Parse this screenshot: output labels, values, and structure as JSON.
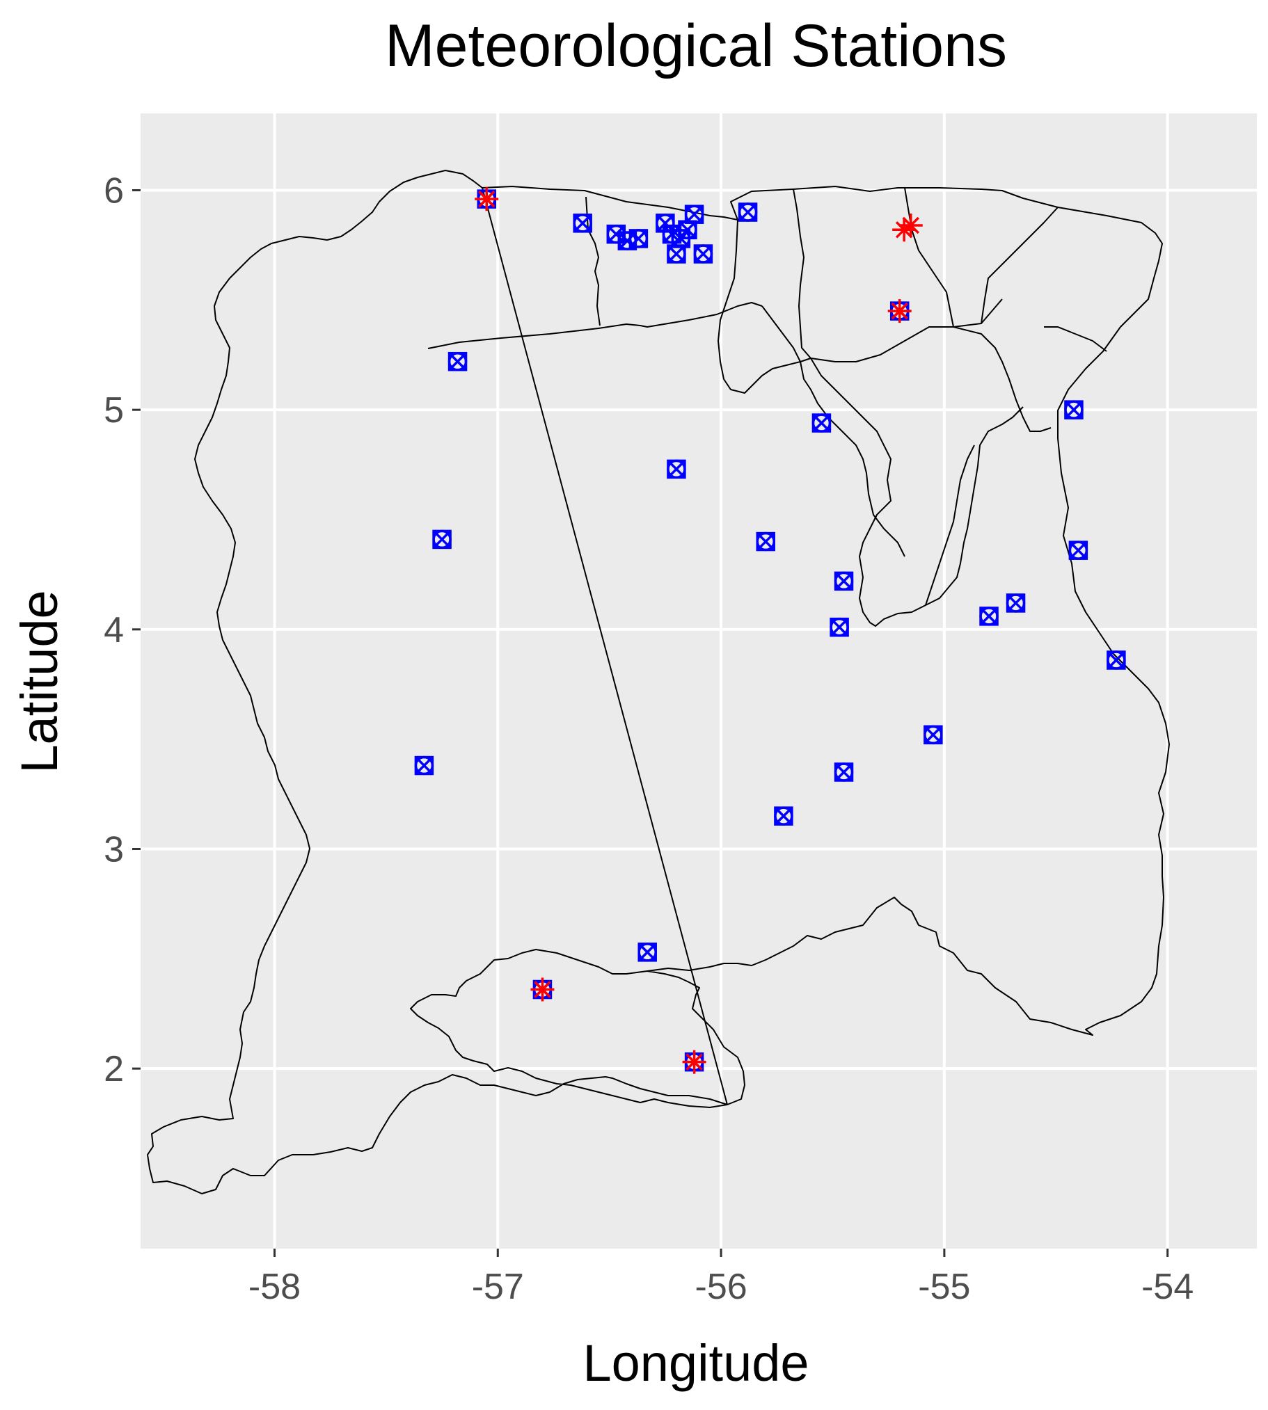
{
  "chart_data": {
    "type": "scatter",
    "title": "Meteorological Stations",
    "xlabel": "Longitude",
    "ylabel": "Latitude",
    "xlim": [
      -58.6,
      -53.6
    ],
    "ylim": [
      1.18,
      6.35
    ],
    "xticks": [
      -58,
      -57,
      -56,
      -55,
      -54
    ],
    "yticks": [
      2,
      3,
      4,
      5,
      6
    ],
    "grid": true,
    "colors": {
      "panel": "#ebebeb",
      "grid": "#ffffff",
      "stations_a": "#0000ff",
      "stations_b": "#ff0000",
      "border": "#000000"
    },
    "series": [
      {
        "marker": "boxed-x",
        "color": "#0000ff",
        "points": [
          [
            -57.05,
            5.96
          ],
          [
            -57.18,
            5.22
          ],
          [
            -56.62,
            5.85
          ],
          [
            -56.47,
            5.8
          ],
          [
            -56.42,
            5.77
          ],
          [
            -56.37,
            5.78
          ],
          [
            -56.25,
            5.85
          ],
          [
            -56.22,
            5.8
          ],
          [
            -56.2,
            5.71
          ],
          [
            -56.18,
            5.78
          ],
          [
            -56.15,
            5.82
          ],
          [
            -56.12,
            5.89
          ],
          [
            -56.08,
            5.71
          ],
          [
            -55.88,
            5.9
          ],
          [
            -55.2,
            5.45
          ],
          [
            -55.55,
            4.94
          ],
          [
            -56.2,
            4.73
          ],
          [
            -57.25,
            4.41
          ],
          [
            -55.8,
            4.4
          ],
          [
            -55.45,
            4.22
          ],
          [
            -55.47,
            4.01
          ],
          [
            -54.8,
            4.06
          ],
          [
            -54.68,
            4.12
          ],
          [
            -54.42,
            5.0
          ],
          [
            -54.4,
            4.36
          ],
          [
            -54.23,
            3.86
          ],
          [
            -55.05,
            3.52
          ],
          [
            -57.33,
            3.38
          ],
          [
            -55.45,
            3.35
          ],
          [
            -55.72,
            3.15
          ],
          [
            -56.33,
            2.53
          ],
          [
            -56.8,
            2.36
          ],
          [
            -56.12,
            2.03
          ]
        ]
      },
      {
        "marker": "asterisk-plus",
        "color": "#ff0000",
        "points": [
          [
            -57.05,
            5.96
          ],
          [
            -55.18,
            5.82
          ],
          [
            -55.15,
            5.84
          ],
          [
            -55.2,
            5.45
          ],
          [
            -56.8,
            2.36
          ],
          [
            -56.12,
            2.03
          ]
        ]
      }
    ]
  }
}
